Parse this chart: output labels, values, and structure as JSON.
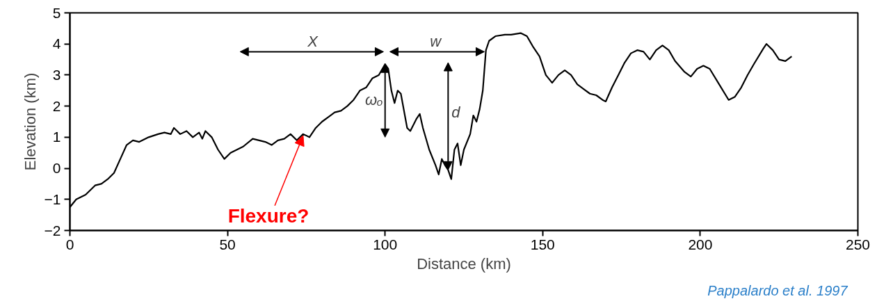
{
  "chart_data": {
    "type": "line",
    "xlabel": "Distance (km)",
    "ylabel": "Elevation (km)",
    "x": [
      0,
      2,
      5,
      8,
      10,
      12,
      14,
      16,
      18,
      20,
      22,
      25,
      28,
      30,
      32,
      33,
      35,
      37,
      39,
      41,
      42,
      43,
      45,
      47,
      49,
      51,
      53,
      55,
      58,
      60,
      62,
      64,
      66,
      68,
      70,
      72,
      74,
      76,
      78,
      80,
      82,
      84,
      86,
      88,
      90,
      92,
      94,
      96,
      98,
      100,
      101,
      102,
      103,
      104,
      105,
      107,
      108,
      110,
      111,
      112,
      114,
      116,
      117,
      118,
      119,
      120,
      121,
      122,
      123,
      124,
      125,
      127,
      128,
      129,
      130,
      131,
      132,
      133,
      135,
      138,
      140,
      143,
      145,
      147,
      149,
      151,
      153,
      155,
      157,
      159,
      161,
      163,
      165,
      167,
      169,
      170,
      172,
      174,
      176,
      178,
      180,
      182,
      184,
      186,
      188,
      190,
      192,
      195,
      197,
      199,
      201,
      203,
      206,
      209,
      211,
      213,
      215,
      217,
      220,
      221,
      223,
      225,
      227,
      229
    ],
    "series": [
      {
        "color": "#000000",
        "values": [
          -1.25,
          -1.0,
          -0.85,
          -0.55,
          -0.5,
          -0.35,
          -0.15,
          0.3,
          0.75,
          0.9,
          0.85,
          1.0,
          1.1,
          1.15,
          1.1,
          1.3,
          1.1,
          1.2,
          1.0,
          1.15,
          0.95,
          1.2,
          1.0,
          0.6,
          0.3,
          0.5,
          0.6,
          0.7,
          0.95,
          0.9,
          0.85,
          0.75,
          0.9,
          0.95,
          1.1,
          0.9,
          1.1,
          1.0,
          1.3,
          1.5,
          1.65,
          1.8,
          1.85,
          2.0,
          2.2,
          2.5,
          2.6,
          2.9,
          3.0,
          3.35,
          3.2,
          2.5,
          2.1,
          2.5,
          2.4,
          1.3,
          1.2,
          1.6,
          1.75,
          1.3,
          0.6,
          0.1,
          -0.2,
          0.3,
          0.1,
          -0.05,
          -0.35,
          0.6,
          0.8,
          0.1,
          0.6,
          1.1,
          1.7,
          1.5,
          1.9,
          2.5,
          3.8,
          4.1,
          4.25,
          4.3,
          4.3,
          4.35,
          4.25,
          3.9,
          3.6,
          3.0,
          2.75,
          3.0,
          3.15,
          3.0,
          2.7,
          2.55,
          2.4,
          2.35,
          2.2,
          2.15,
          2.6,
          3.0,
          3.4,
          3.7,
          3.8,
          3.75,
          3.5,
          3.8,
          3.95,
          3.8,
          3.45,
          3.1,
          2.95,
          3.2,
          3.3,
          3.2,
          2.7,
          2.2,
          2.3,
          2.6,
          3.0,
          3.35,
          3.85,
          4.0,
          3.8,
          3.5,
          3.45,
          3.6
        ]
      }
    ],
    "xlim": [
      0,
      250
    ],
    "ylim": [
      -2,
      5
    ],
    "xticks": [
      0,
      50,
      100,
      150,
      200,
      250
    ],
    "yticks": [
      -2,
      -1,
      0,
      1,
      2,
      3,
      4,
      5
    ],
    "grid": false,
    "marker": "none",
    "line_style": "solid",
    "annotations": [
      "X",
      "w",
      {
        "text": "ωₒ",
        "x": 100,
        "y": 3.35
      },
      "d",
      {
        "text": "Flexure?",
        "x": 74,
        "y": 1.05
      },
      "Pappalardo et al. 1997"
    ]
  }
}
